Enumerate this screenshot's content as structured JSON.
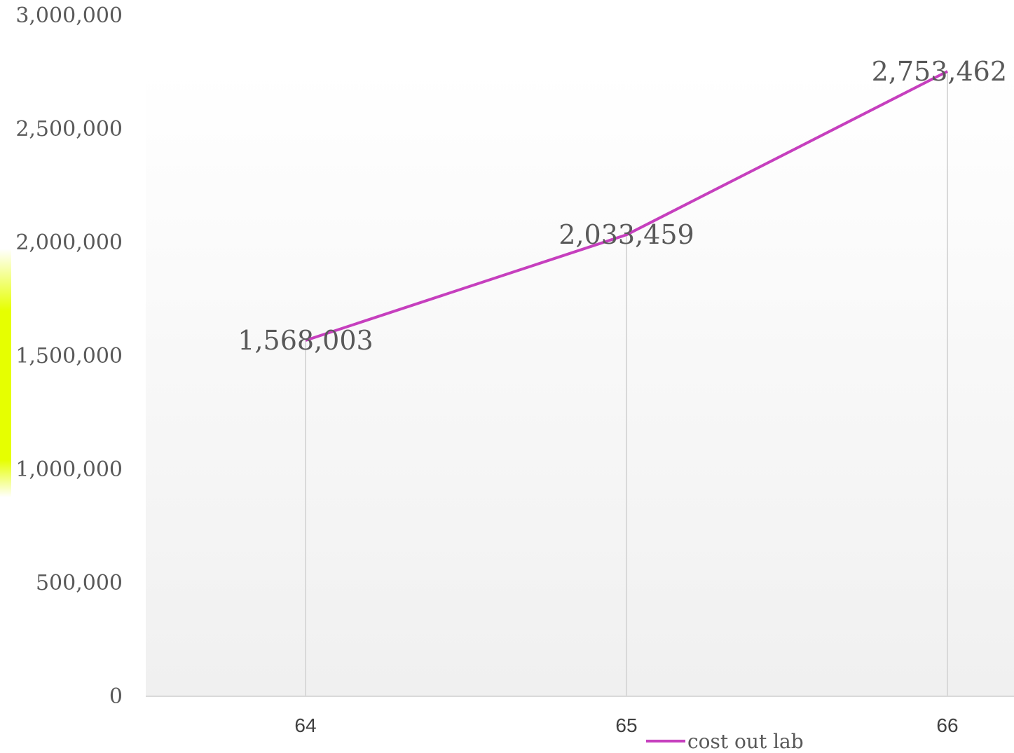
{
  "chart_data": {
    "type": "line",
    "categories": [
      "64",
      "65",
      "66"
    ],
    "series": [
      {
        "name": "cost out lab",
        "color": "#C63FBE",
        "values": [
          1568003,
          2033459,
          2753462
        ],
        "data_labels": [
          "1,568,003",
          "2,033,459",
          "2,753,462"
        ]
      }
    ],
    "y_ticks": [
      "0",
      "500,000",
      "1,000,000",
      "1,500,000",
      "2,000,000",
      "2,500,000",
      "3,000,000"
    ],
    "ylim": [
      0,
      3000000
    ],
    "grid": "vertical drop lines",
    "legend_position": "bottom",
    "colors": {
      "line": "#C63FBE",
      "axis": "#D9D9D9",
      "dropline": "#D9D9D9",
      "plot_bg_top": "#FFFFFF",
      "plot_bg_bottom": "#F0F0F0",
      "left_accent": "#E6FF00"
    }
  }
}
